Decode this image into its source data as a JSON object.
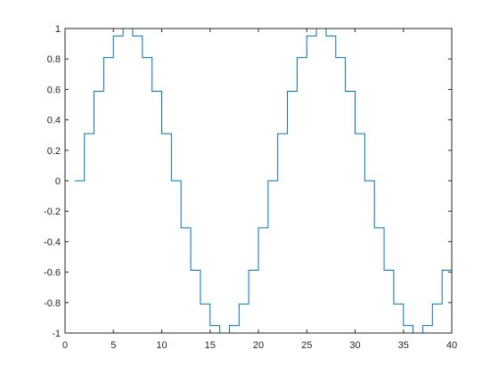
{
  "chart_data": {
    "type": "line",
    "style": "stairs",
    "title": "",
    "xlabel": "",
    "ylabel": "",
    "xlim": [
      0,
      40
    ],
    "ylim": [
      -1,
      1
    ],
    "grid": false,
    "box": true,
    "x_ticks": [
      0,
      5,
      10,
      15,
      20,
      25,
      30,
      35,
      40
    ],
    "x_tick_labels": [
      "0",
      "5",
      "10",
      "15",
      "20",
      "25",
      "30",
      "35",
      "40"
    ],
    "y_ticks": [
      -1,
      -0.8,
      -0.6,
      -0.4,
      -0.2,
      0,
      0.2,
      0.4,
      0.6,
      0.8,
      1
    ],
    "y_tick_labels": [
      "-1",
      "-0.8",
      "-0.6",
      "-0.4",
      "-0.2",
      "0",
      "0.2",
      "0.4",
      "0.6",
      "0.8",
      "1"
    ],
    "series": [
      {
        "color": "#0072BD",
        "x": [
          1,
          2,
          3,
          4,
          5,
          6,
          7,
          8,
          9,
          10,
          11,
          12,
          13,
          14,
          15,
          16,
          17,
          18,
          19,
          20,
          21,
          22,
          23,
          24,
          25,
          26,
          27,
          28,
          29,
          30,
          31,
          32,
          33,
          34,
          35,
          36,
          37,
          38,
          39,
          40
        ],
        "values": [
          0,
          0.309,
          0.588,
          0.809,
          0.951,
          1,
          0.951,
          0.809,
          0.588,
          0.309,
          0,
          -0.309,
          -0.588,
          -0.809,
          -0.951,
          -1,
          -0.951,
          -0.809,
          -0.588,
          -0.309,
          0,
          0.309,
          0.588,
          0.809,
          0.951,
          1,
          0.951,
          0.809,
          0.588,
          0.309,
          0,
          -0.309,
          -0.588,
          -0.809,
          -0.951,
          -1,
          -0.951,
          -0.809,
          -0.588,
          -0.309
        ]
      }
    ]
  }
}
